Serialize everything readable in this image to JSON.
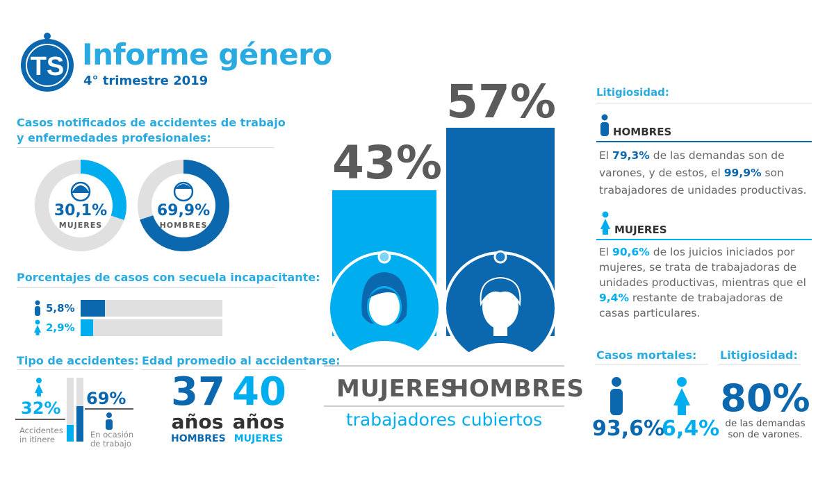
{
  "header": {
    "logo_text": "TS",
    "title": "Informe género",
    "subtitle": "4° trimestre 2019"
  },
  "colors": {
    "dark_blue": "#0b67ae",
    "light_blue": "#00aeef",
    "grey": "#5b5b5b",
    "track": "#e0e0e0"
  },
  "casos": {
    "heading_line1": "Casos notificados de accidentes de trabajo",
    "heading_line2": "y enfermedades profesionales:",
    "mujeres": {
      "value": "30,1%",
      "label": "MUJERES",
      "fraction": 0.301,
      "icon": "woman-icon"
    },
    "hombres": {
      "value": "69,9%",
      "label": "HOMBRES",
      "fraction": 0.699,
      "icon": "man-icon"
    }
  },
  "secuela": {
    "heading": "Porcentajes de casos con secuela incapacitante:",
    "hombres": {
      "value": "5,8%",
      "fraction": 0.058,
      "icon": "man-figure-icon"
    },
    "mujeres": {
      "value": "2,9%",
      "fraction": 0.029,
      "icon": "woman-figure-icon"
    }
  },
  "tipo": {
    "heading": "Tipo de accidentes:",
    "itinere_value": "32%",
    "itinere_label_1": "Accidentes",
    "itinere_label_2": "in itinere",
    "ocasion_value": "69%",
    "ocasion_label_1": "En ocasión",
    "ocasion_label_2": "de trabajo"
  },
  "edad": {
    "heading": "Edad promedio al accidentarse:",
    "hombres": {
      "number": "37",
      "unit": "años",
      "label": "HOMBRES"
    },
    "mujeres": {
      "number": "40",
      "unit": "años",
      "label": "MUJERES"
    }
  },
  "cubiertos": {
    "mujeres_pct": "43%",
    "hombres_pct": "57%",
    "mujeres_label": "MUJERES",
    "hombres_label": "HOMBRES",
    "caption": "trabajadores cubiertos"
  },
  "litigiosidad": {
    "heading": "Litigiosidad:",
    "hombres_title": "HOMBRES",
    "hombres_text": {
      "p1": "El ",
      "v1": "79,3%",
      "p2": " de las demandas son de varones, y de estos, el ",
      "v2": "99,9%",
      "p3": " son trabajadores de unidades productivas."
    },
    "mujeres_title": "MUJERES",
    "mujeres_text": {
      "p1": "El ",
      "v1": "90,6%",
      "p2": " de los juicios iniciados por mujeres, se trata de trabajadoras de unidades productivas, mientras que el ",
      "v2": "9,4%",
      "p3": " restante de trabajadoras de casas particulares."
    }
  },
  "mortales": {
    "heading": "Casos mortales:",
    "hombres_value": "93,6%",
    "mujeres_value": "6,4%"
  },
  "litigiosidad2": {
    "heading": "Litigiosidad:",
    "value": "80%",
    "caption_1": "de las demandas",
    "caption_2": "son de varones."
  }
}
